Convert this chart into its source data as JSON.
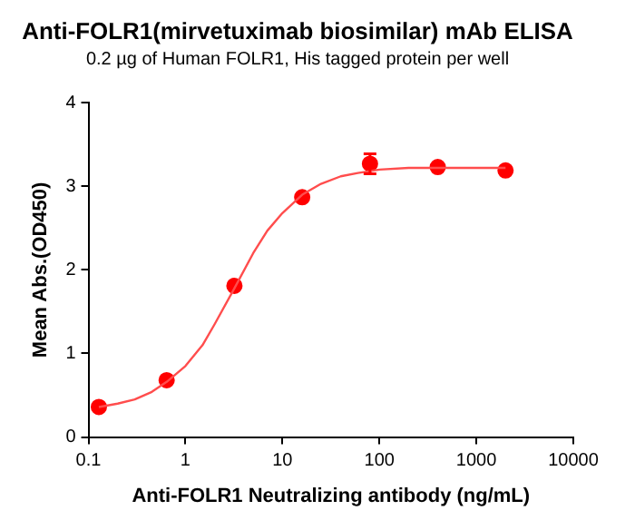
{
  "chart_data": {
    "type": "scatter",
    "title": "Anti-FOLR1(mirvetuximab biosimilar) mAb ELISA",
    "subtitle": "0.2 µg of Human FOLR1, His tagged protein per well",
    "xlabel": "Anti-FOLR1 Neutralizing antibody (ng/mL)",
    "ylabel": "Mean Abs.(OD450)",
    "log": "x",
    "grid": false,
    "legend": false,
    "xlim": [
      0.1,
      10000
    ],
    "xticks": [
      0.1,
      1,
      10,
      100,
      1000,
      10000
    ],
    "ylim": [
      0,
      4
    ],
    "yticks": [
      0,
      1,
      2,
      3,
      4
    ],
    "series": [
      {
        "type": "line",
        "color": "#ff4d4d",
        "marker": "none",
        "line_style": "solid",
        "x": [
          0.128,
          0.2,
          0.3,
          0.45,
          0.64,
          1,
          1.5,
          2,
          3.2,
          5,
          7,
          10,
          16,
          25,
          40,
          60,
          100,
          200,
          400,
          1000,
          2000
        ],
        "values": [
          0.36,
          0.4,
          0.45,
          0.54,
          0.66,
          0.85,
          1.1,
          1.35,
          1.78,
          2.2,
          2.47,
          2.68,
          2.9,
          3.03,
          3.12,
          3.16,
          3.2,
          3.22,
          3.22,
          3.22,
          3.22
        ]
      },
      {
        "color": "#ff0000",
        "marker": "circle",
        "x": [
          0.128,
          0.64,
          3.2,
          16,
          80,
          400,
          2000
        ],
        "values": [
          0.36,
          0.68,
          1.81,
          2.87,
          3.27,
          3.23,
          3.19
        ],
        "errors": [
          null,
          null,
          null,
          null,
          0.12,
          null,
          null
        ]
      }
    ]
  }
}
